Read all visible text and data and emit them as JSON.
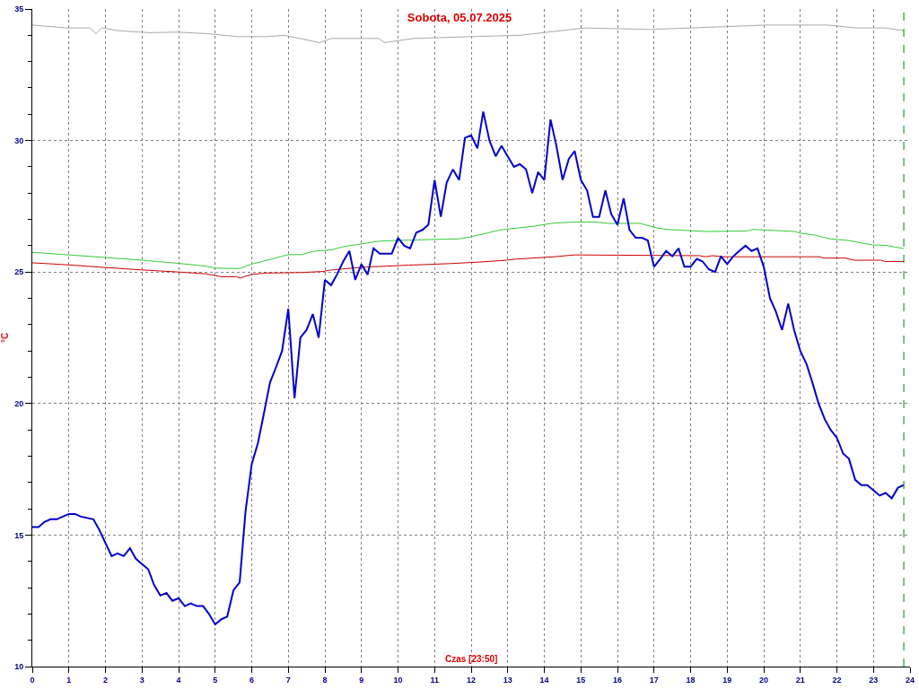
{
  "chart_data": {
    "type": "line",
    "title": "Sobota, 05.07.2025",
    "xlabel": "Czas [23:50]",
    "ylabel": "°C",
    "xlim": [
      0,
      24
    ],
    "xticks": [
      0,
      1,
      2,
      3,
      4,
      5,
      6,
      7,
      8,
      9,
      10,
      11,
      12,
      13,
      14,
      15,
      16,
      17,
      18,
      19,
      20,
      21,
      22,
      23,
      24
    ],
    "ylim": [
      10,
      35
    ],
    "yticks": [
      10,
      {
        "value": 11,
        "label": null
      },
      {
        "value": 12,
        "label": null
      },
      {
        "value": 13,
        "label": null
      },
      {
        "value": 14,
        "label": null
      },
      15,
      {
        "value": 16,
        "label": null
      },
      {
        "value": 17,
        "label": null
      },
      {
        "value": 18,
        "label": null
      },
      {
        "value": 19,
        "label": null
      },
      20,
      {
        "value": 21,
        "label": null
      },
      {
        "value": 22,
        "label": null
      },
      {
        "value": 23,
        "label": null
      },
      {
        "value": 24,
        "label": null
      },
      25,
      {
        "value": 26,
        "label": null
      },
      {
        "value": 27,
        "label": null
      },
      {
        "value": 28,
        "label": null
      },
      {
        "value": 29,
        "label": null
      },
      30,
      {
        "value": 31,
        "label": null
      },
      {
        "value": 32,
        "label": null
      },
      {
        "value": 33,
        "label": null
      },
      {
        "value": 34,
        "label": null
      },
      35
    ],
    "grid": true,
    "marker": "none",
    "line_style": "solid",
    "ref_lines": [
      {
        "axis": "x",
        "value": 23.83,
        "color": "#008000",
        "line_style": "dashed"
      }
    ],
    "series": [
      {
        "color": "#a8a8a8",
        "x": [
          0,
          0.93,
          1.58,
          1.74,
          1.9,
          2.38,
          3.19,
          3.99,
          4.8,
          5.61,
          6.41,
          6.9,
          7.86,
          8.18,
          9.47,
          9.63,
          10.44,
          12.05,
          13.34,
          15.11,
          16.89,
          20.11,
          21.72,
          22.53,
          23.33,
          23.83
        ],
        "values": [
          34.39,
          34.28,
          34.28,
          34.06,
          34.28,
          34.17,
          34.1,
          34.12,
          34.06,
          33.95,
          33.95,
          34.0,
          33.72,
          33.88,
          33.88,
          33.72,
          33.88,
          33.95,
          34.0,
          34.28,
          34.22,
          34.39,
          34.39,
          34.28,
          34.28,
          34.17
        ]
      },
      {
        "color": "#33cc33",
        "x": [
          0,
          1.0,
          2.0,
          3.0,
          4.0,
          4.76,
          5.0,
          5.66,
          6.0,
          7.0,
          7.36,
          7.69,
          8.17,
          8.5,
          9.47,
          9.96,
          11.02,
          11.67,
          12.0,
          12.8,
          13.7,
          14.27,
          14.83,
          15.4,
          15.73,
          16.62,
          17.03,
          17.35,
          18.41,
          19.55,
          19.67,
          20.0,
          20.85,
          21.0,
          21.41,
          21.82,
          22.31,
          22.96,
          23.36,
          23.83
        ],
        "values": [
          25.75,
          25.65,
          25.55,
          25.45,
          25.33,
          25.22,
          25.15,
          25.13,
          25.3,
          25.66,
          25.66,
          25.79,
          25.84,
          25.96,
          26.17,
          26.2,
          26.24,
          26.26,
          26.34,
          26.6,
          26.74,
          26.86,
          26.9,
          26.9,
          26.85,
          26.85,
          26.69,
          26.62,
          26.54,
          26.56,
          26.62,
          26.6,
          26.54,
          26.48,
          26.4,
          26.26,
          26.2,
          26.03,
          26.01,
          25.89
        ]
      },
      {
        "color": "#cc0000",
        "x": [
          0,
          1.0,
          2.0,
          3.0,
          4.0,
          4.76,
          5.17,
          5.58,
          5.68,
          6.0,
          6.39,
          7.36,
          7.93,
          8.13,
          8.58,
          9.15,
          10.29,
          11.42,
          12.24,
          12.97,
          13.21,
          14.27,
          14.83,
          18.25,
          18.41,
          18.6,
          18.89,
          21.5,
          21.66,
          22.23,
          22.47,
          23.2,
          23.32,
          23.83
        ],
        "values": [
          25.35,
          25.27,
          25.17,
          25.08,
          25.0,
          24.93,
          24.82,
          24.82,
          24.77,
          24.91,
          24.96,
          24.98,
          25.02,
          25.07,
          25.13,
          25.19,
          25.26,
          25.32,
          25.38,
          25.45,
          25.49,
          25.58,
          25.65,
          25.62,
          25.58,
          25.62,
          25.58,
          25.58,
          25.53,
          25.53,
          25.45,
          25.45,
          25.4,
          25.4
        ]
      },
      {
        "color": "#0000cc",
        "x": [
          0,
          0.17,
          0.33,
          0.5,
          0.67,
          0.83,
          1.0,
          1.17,
          1.33,
          1.67,
          1.83,
          2.0,
          2.17,
          2.33,
          2.5,
          2.67,
          2.83,
          3.0,
          3.17,
          3.33,
          3.5,
          3.67,
          3.83,
          4.0,
          4.17,
          4.33,
          4.5,
          4.67,
          4.83,
          5.0,
          5.17,
          5.33,
          5.5,
          5.67,
          5.83,
          6.0,
          6.17,
          6.33,
          6.5,
          6.67,
          6.83,
          7.0,
          7.17,
          7.33,
          7.5,
          7.67,
          7.83,
          8.0,
          8.17,
          8.33,
          8.5,
          8.67,
          8.83,
          9.0,
          9.17,
          9.33,
          9.5,
          9.67,
          9.83,
          10.0,
          10.17,
          10.33,
          10.5,
          10.67,
          10.83,
          11.0,
          11.17,
          11.33,
          11.5,
          11.67,
          11.83,
          12.0,
          12.17,
          12.33,
          12.5,
          12.67,
          12.83,
          13.0,
          13.17,
          13.33,
          13.5,
          13.67,
          13.83,
          14.0,
          14.17,
          14.33,
          14.5,
          14.67,
          14.83,
          15.0,
          15.17,
          15.33,
          15.5,
          15.67,
          15.83,
          16.0,
          16.17,
          16.33,
          16.5,
          16.67,
          16.83,
          17.0,
          17.17,
          17.33,
          17.5,
          17.67,
          17.83,
          18.0,
          18.17,
          18.33,
          18.5,
          18.67,
          18.83,
          19.0,
          19.17,
          19.33,
          19.5,
          19.67,
          19.83,
          20.0,
          20.17,
          20.33,
          20.5,
          20.67,
          20.83,
          21.0,
          21.17,
          21.33,
          21.5,
          21.67,
          21.83,
          22.0,
          22.17,
          22.33,
          22.5,
          22.67,
          22.83,
          23.0,
          23.17,
          23.33,
          23.5,
          23.67,
          23.83
        ],
        "values": [
          15.3,
          15.3,
          15.5,
          15.6,
          15.6,
          15.7,
          15.8,
          15.8,
          15.7,
          15.6,
          15.2,
          14.7,
          14.2,
          14.3,
          14.2,
          14.5,
          14.1,
          13.9,
          13.7,
          13.1,
          12.7,
          12.8,
          12.5,
          12.6,
          12.3,
          12.4,
          12.3,
          12.3,
          12.0,
          11.6,
          11.8,
          11.9,
          12.9,
          13.2,
          15.9,
          17.7,
          18.5,
          19.6,
          20.8,
          21.4,
          22.0,
          23.6,
          20.2,
          22.5,
          22.8,
          23.4,
          22.5,
          24.7,
          24.5,
          24.9,
          25.4,
          25.8,
          24.7,
          25.3,
          24.9,
          25.9,
          25.7,
          25.7,
          25.7,
          26.3,
          26.0,
          25.9,
          26.5,
          26.6,
          26.8,
          28.5,
          27.1,
          28.4,
          28.9,
          28.5,
          30.1,
          30.2,
          29.7,
          31.1,
          30.0,
          29.4,
          29.8,
          29.4,
          29.0,
          29.1,
          28.9,
          28.0,
          28.8,
          28.5,
          30.8,
          29.8,
          28.5,
          29.3,
          29.6,
          28.5,
          28.1,
          27.1,
          27.1,
          28.1,
          27.2,
          26.8,
          27.8,
          26.6,
          26.3,
          26.3,
          26.2,
          25.2,
          25.5,
          25.8,
          25.6,
          25.9,
          25.2,
          25.2,
          25.5,
          25.4,
          25.1,
          25.0,
          25.6,
          25.3,
          25.6,
          25.8,
          26.0,
          25.8,
          25.9,
          25.2,
          24.0,
          23.5,
          22.8,
          23.8,
          22.8,
          22.0,
          21.5,
          20.8,
          20.0,
          19.4,
          19.0,
          18.7,
          18.1,
          17.9,
          17.1,
          16.9,
          16.9,
          16.7,
          16.5,
          16.6,
          16.4,
          16.8,
          16.9
        ]
      }
    ]
  }
}
